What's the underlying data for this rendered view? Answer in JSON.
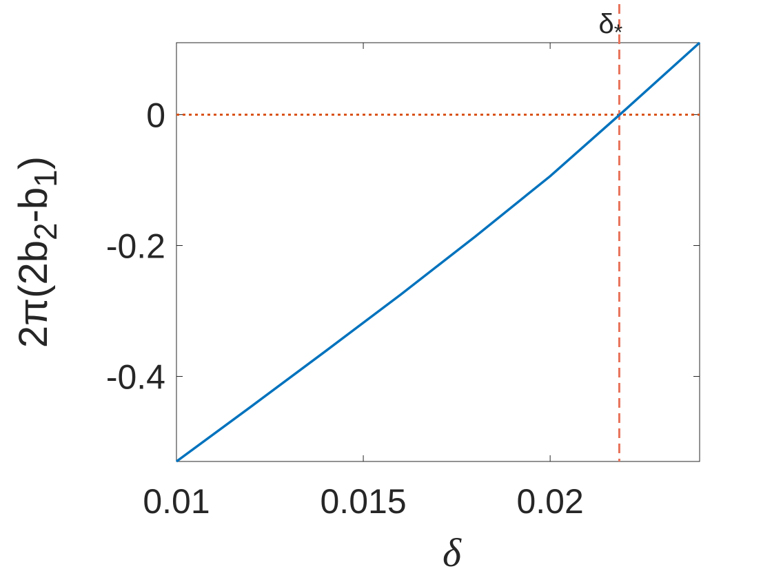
{
  "chart_data": {
    "type": "line",
    "xlabel": "δ",
    "ylabel": [
      "2π(2b",
      "2",
      "-b",
      "1",
      ")"
    ],
    "x": [
      0.01,
      0.012,
      0.014,
      0.016,
      0.018,
      0.02,
      0.022,
      0.024
    ],
    "series": [
      {
        "color": "#0072bd",
        "values": [
          -0.53,
          -0.446,
          -0.361,
          -0.275,
          -0.186,
          -0.094,
          0.007,
          0.11
        ]
      }
    ],
    "xlim": [
      0.01,
      0.024
    ],
    "ylim": [
      -0.53,
      0.11
    ],
    "xticks": [
      0.01,
      0.015,
      0.02
    ],
    "yticks": [
      -0.4,
      -0.2,
      0
    ],
    "hline": {
      "value": 0,
      "color": "#d95319"
    },
    "vline": {
      "value": 0.02185,
      "color": "#e8735a"
    },
    "annotation": {
      "text": "δ",
      "sub": "*"
    }
  }
}
